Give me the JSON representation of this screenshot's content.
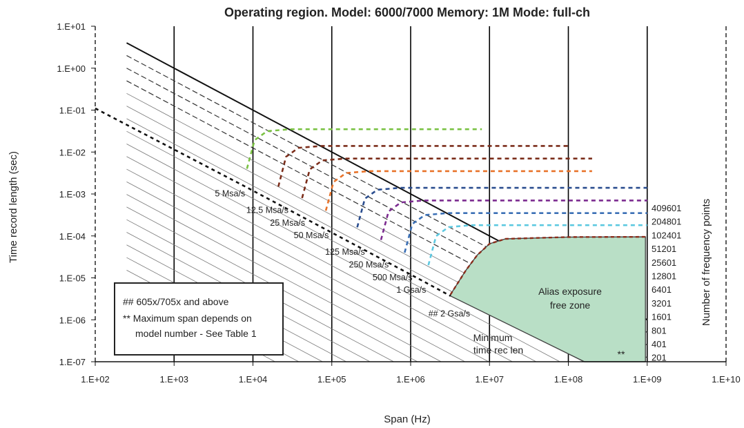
{
  "chart_data": {
    "type": "line",
    "title": "Operating region. Model: 6000/7000  Memory: 1M  Mode: full-ch",
    "xlabel": "Span (Hz)",
    "ylabel": "Time record length (sec)",
    "right_label": "Number of frequency points",
    "x_scale": "log",
    "y_scale": "log",
    "xlim": [
      100,
      10000000000
    ],
    "ylim": [
      1e-07,
      10
    ],
    "x_ticks": [
      "1.E+02",
      "1.E+03",
      "1.E+04",
      "1.E+05",
      "1.E+06",
      "1.E+07",
      "1.E+08",
      "1.E+09",
      "1.E+10"
    ],
    "y_ticks": [
      "1.E+01",
      "1.E+00",
      "1.E-01",
      "1.E-02",
      "1.E-03",
      "1.E-04",
      "1.E-05",
      "1.E-06",
      "1.E-07"
    ],
    "grid": "vertical major lines",
    "frequency_points": [
      "409601",
      "204801",
      "102401",
      "51201",
      "25601",
      "12801",
      "6401",
      "3201",
      "1601",
      "801",
      "401",
      "201"
    ],
    "sample_rates": [
      {
        "label": "5 Msa/s",
        "span": 8000,
        "trec": 0.0015,
        "color": "#7ac143",
        "plateau": 0.035,
        "start_trec": 0.004,
        "end_span": 8000000
      },
      {
        "label": "12.5 Msa/s",
        "span": 20000,
        "trec": 0.0006,
        "color": "#7b2d1a",
        "plateau": 0.014,
        "start_trec": 0.0015,
        "end_span": 100000000
      },
      {
        "label": "25 Msa/s",
        "span": 40000,
        "trec": 0.0003,
        "color": "#7b2d1a",
        "plateau": 0.007,
        "start_trec": 0.0008,
        "end_span": 200000000
      },
      {
        "label": "50 Msa/s",
        "span": 80000,
        "trec": 0.00015,
        "color": "#e8732a",
        "plateau": 0.0035,
        "start_trec": 0.0004,
        "end_span": 200000000
      },
      {
        "label": "125 Msa/s",
        "span": 200000,
        "trec": 6e-05,
        "color": "#2a4d8f",
        "plateau": 0.0014,
        "start_trec": 0.00016,
        "end_span": 1000000000
      },
      {
        "label": "250 Msa/s",
        "span": 400000,
        "trec": 3e-05,
        "color": "#7b2a8f",
        "plateau": 0.0007,
        "start_trec": 8e-05,
        "end_span": 1000000000
      },
      {
        "label": "500 Msa/s",
        "span": 800000,
        "trec": 1.5e-05,
        "color": "#3a6fb5",
        "plateau": 0.00035,
        "start_trec": 4e-05,
        "end_span": 1000000000
      },
      {
        "label": "1 Gsa/s",
        "span": 1600000,
        "trec": 7.5e-06,
        "color": "#5cc8e0",
        "plateau": 0.00018,
        "start_trec": 2e-05,
        "end_span": 1000000000
      },
      {
        "label": "## 2 Gsa/s",
        "span": 3200000,
        "trec": 3.7e-06,
        "color": "#8b2c1a",
        "plateau": 9.45e-05,
        "start_trec": 1e-05,
        "end_span": 1000000000
      }
    ],
    "annotations": {
      "alias_zone_line1": "Alias exposure",
      "alias_zone_line2": "free zone",
      "min_rec_line1": "Minimum",
      "min_rec_line2": "time rec len",
      "zone_marker": "**"
    },
    "legend": {
      "line1": "## 605x/705x and above",
      "line2": "** Maximum span depends on",
      "line3": "model number - See Table 1"
    }
  }
}
